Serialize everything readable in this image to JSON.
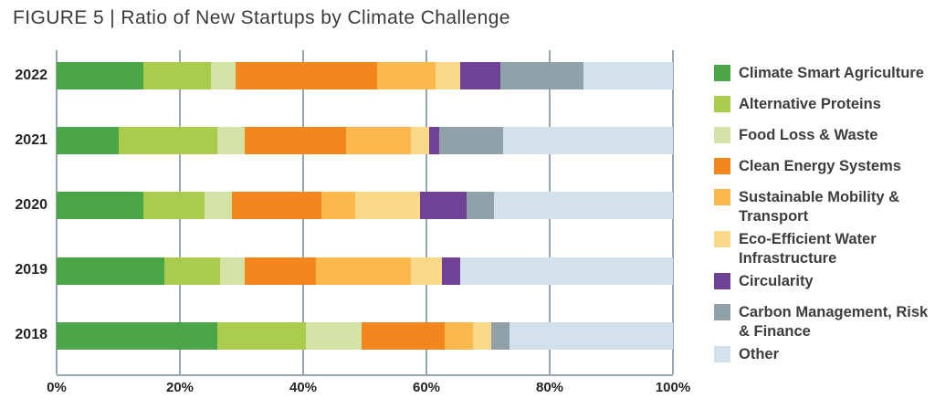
{
  "title": "FIGURE 5 | Ratio of New Startups by Climate Challenge",
  "colors": {
    "gridline": "#95a7b0",
    "axis": "#95a7b0",
    "title_text": "#3a3a3a",
    "label_text": "#242424",
    "legend_text": "#3d3d3d"
  },
  "chart_data": {
    "type": "bar",
    "orientation": "horizontal",
    "stacked": true,
    "grid": true,
    "legend_position": "right",
    "title": "FIGURE 5 | Ratio of New Startups by Climate Challenge",
    "xlabel": "",
    "ylabel": "",
    "categories": [
      "2022",
      "2021",
      "2020",
      "2019",
      "2018"
    ],
    "x_axis": {
      "range": [
        0,
        100
      ],
      "values": [
        0,
        20,
        40,
        60,
        80,
        100
      ],
      "ticks": [
        "0%",
        "20%",
        "40%",
        "60%",
        "80%",
        "100%"
      ]
    },
    "series": [
      {
        "name": "Climate Smart Agriculture",
        "color": "#4ba648",
        "values": [
          14,
          10,
          14,
          17.5,
          26
        ]
      },
      {
        "name": "Alternative Proteins",
        "color": "#a9cc4d",
        "values": [
          11,
          16,
          10,
          9,
          14.5
        ]
      },
      {
        "name": "Food Loss & Waste",
        "color": "#d3e3a6",
        "values": [
          4,
          4.5,
          4.5,
          4,
          9
        ]
      },
      {
        "name": "Clean Energy Systems",
        "color": "#f1871d",
        "values": [
          23,
          16.5,
          14.5,
          11.5,
          13.5
        ]
      },
      {
        "name": "Sustainable Mobility & Transport",
        "color": "#fbb84d",
        "values": [
          9.5,
          10.5,
          5.5,
          15.5,
          4.5
        ]
      },
      {
        "name": "Eco-Efficient Water Infrastructure",
        "color": "#f9d987",
        "values": [
          4,
          3,
          10.5,
          5,
          3
        ]
      },
      {
        "name": "Circularity",
        "color": "#6e4395",
        "values": [
          6.5,
          1.5,
          7.5,
          3,
          0
        ]
      },
      {
        "name": "Carbon Management, Risk & Finance",
        "color": "#90a1a9",
        "values": [
          13.5,
          10.5,
          4.5,
          0,
          3
        ]
      },
      {
        "name": "Other",
        "color": "#d2e1eb",
        "values": [
          14.5,
          27.5,
          29,
          34.5,
          26.5
        ]
      }
    ]
  }
}
